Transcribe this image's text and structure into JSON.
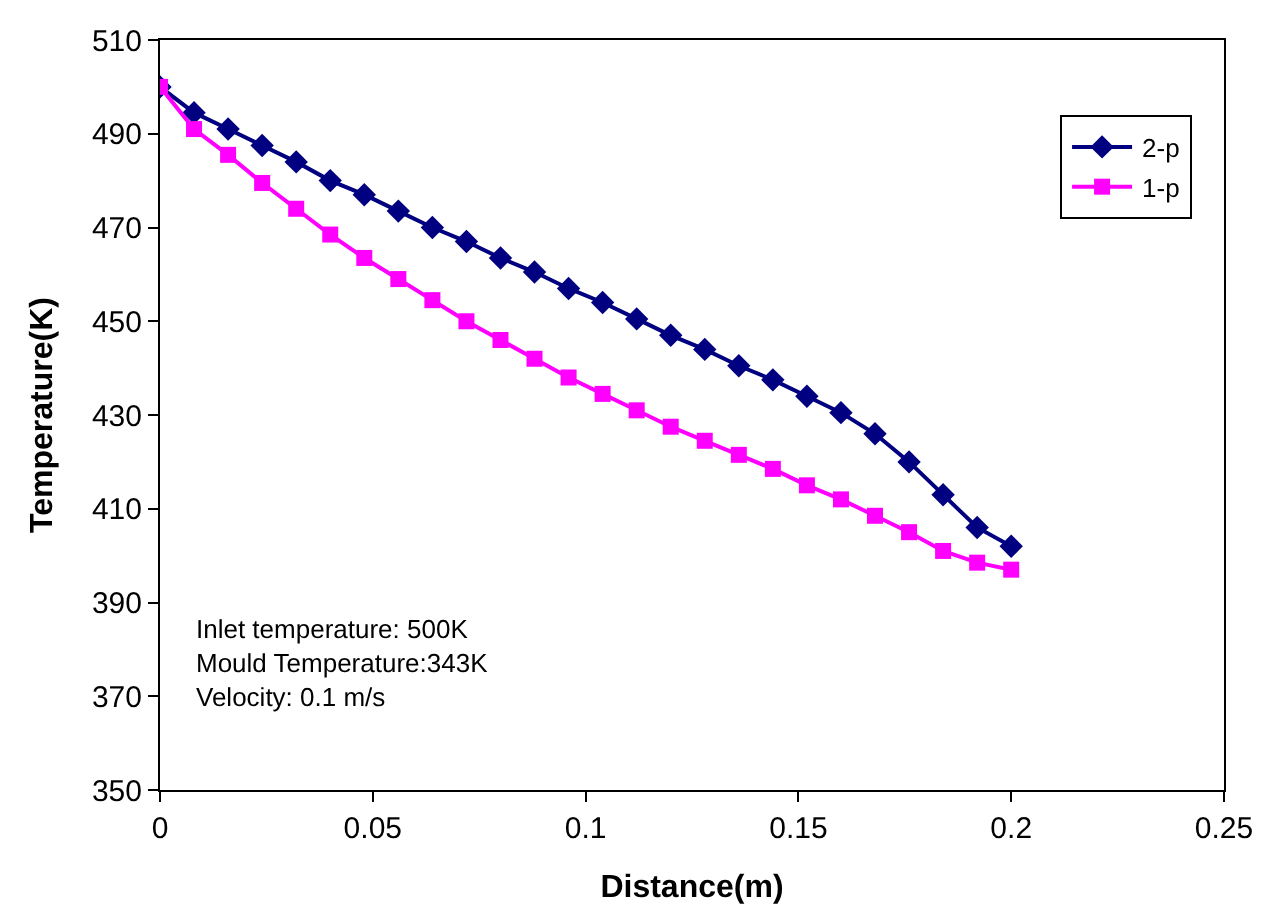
{
  "chart_data": {
    "type": "line",
    "xlabel": "Distance(m)",
    "ylabel": "Temperature(K)",
    "x": [
      0,
      0.008,
      0.016,
      0.024,
      0.032,
      0.04,
      0.048,
      0.056,
      0.064,
      0.072,
      0.08,
      0.088,
      0.096,
      0.104,
      0.112,
      0.12,
      0.128,
      0.136,
      0.144,
      0.152,
      0.16,
      0.168,
      0.176,
      0.184,
      0.192,
      0.2
    ],
    "series": [
      {
        "name": "2-p",
        "color": "#000080",
        "marker": "diamond",
        "values": [
          500,
          494.5,
          491,
          487.5,
          484,
          480,
          477,
          473.5,
          470,
          467,
          463.5,
          460.5,
          457,
          454,
          450.5,
          447,
          444,
          440.5,
          437.5,
          434,
          430.5,
          426,
          420,
          413,
          406,
          402
        ]
      },
      {
        "name": "1-p",
        "color": "#ff00ff",
        "marker": "square",
        "values": [
          500,
          491,
          485.5,
          479.5,
          474,
          468.5,
          463.5,
          459,
          454.5,
          450,
          446,
          442,
          438,
          434.5,
          431,
          427.5,
          424.5,
          421.5,
          418.5,
          415,
          412,
          408.5,
          405,
          401,
          398.5,
          397
        ]
      }
    ],
    "xlim": [
      0,
      0.25
    ],
    "xticks": [
      0,
      0.05,
      0.1,
      0.15,
      0.2,
      0.25
    ],
    "ylim": [
      350,
      510
    ],
    "yticks": [
      350,
      370,
      390,
      410,
      430,
      450,
      470,
      490,
      510
    ],
    "legend": "top right",
    "annotations": [
      "Inlet temperature: 500K\nMould Temperature:343K\nVelocity: 0.1 m/s"
    ]
  }
}
